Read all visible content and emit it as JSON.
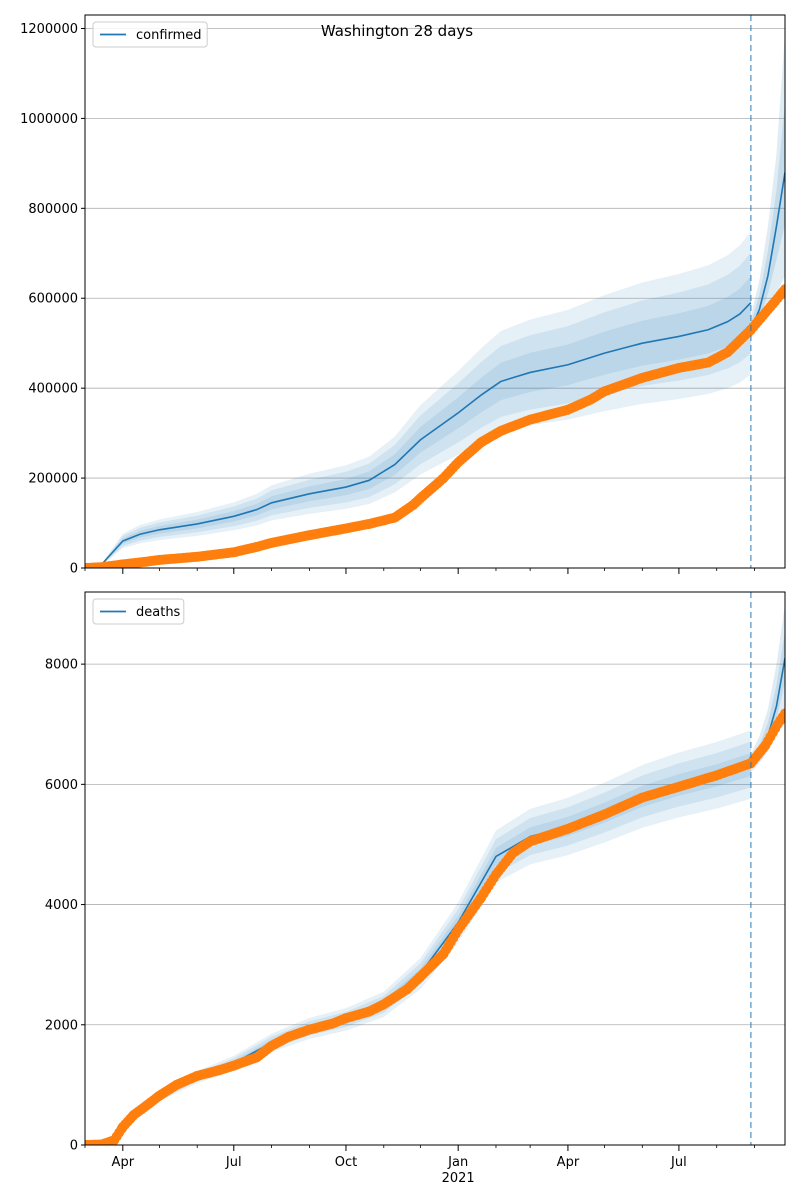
{
  "title": "Washington 28 days",
  "colors": {
    "model": "#1f77b4",
    "observed": "#ff7f0e",
    "grid": "#b0b0b0",
    "band": "#1f77b4"
  },
  "x_axis": {
    "start": "2020-03-01",
    "end": "2021-09-26",
    "major_ticks": [
      {
        "date": "2020-04-01",
        "label": "Apr"
      },
      {
        "date": "2020-07-01",
        "label": "Jul"
      },
      {
        "date": "2020-10-01",
        "label": "Oct"
      },
      {
        "date": "2021-01-01",
        "label": "Jan"
      },
      {
        "date": "2021-04-01",
        "label": "Apr"
      },
      {
        "date": "2021-07-01",
        "label": "Jul"
      }
    ],
    "year_label": {
      "date": "2021-01-01",
      "label": "2021"
    },
    "minor_ticks": [
      "2020-03-01",
      "2020-05-01",
      "2020-06-01",
      "2020-08-01",
      "2020-09-01",
      "2020-11-01",
      "2020-12-01",
      "2021-02-01",
      "2021-03-01",
      "2021-05-01",
      "2021-06-01",
      "2021-08-01",
      "2021-09-01"
    ]
  },
  "forecast_start": "2021-08-29",
  "chart_data": [
    {
      "type": "line",
      "legend": "confirmed",
      "legend_position": "top-left",
      "grid": "y",
      "ylim": [
        0,
        1230000
      ],
      "yticks": [
        {
          "value": 0,
          "label": "0"
        },
        {
          "value": 200000,
          "label": "200000"
        },
        {
          "value": 400000,
          "label": "400000"
        },
        {
          "value": 600000,
          "label": "600000"
        },
        {
          "value": 800000,
          "label": "800000"
        },
        {
          "value": 1000000,
          "label": "1000000"
        },
        {
          "value": 1200000,
          "label": "1200000"
        }
      ],
      "fit": {
        "x": [
          "2020-03-01",
          "2020-03-12",
          "2020-03-22",
          "2020-04-01",
          "2020-04-15",
          "2020-05-01",
          "2020-06-01",
          "2020-07-01",
          "2020-07-20",
          "2020-08-01",
          "2020-09-01",
          "2020-10-01",
          "2020-10-20",
          "2020-11-10",
          "2020-12-01",
          "2021-01-01",
          "2021-01-20",
          "2021-02-05",
          "2021-03-01",
          "2021-04-01",
          "2021-05-01",
          "2021-06-01",
          "2021-07-01",
          "2021-07-25",
          "2021-08-10",
          "2021-08-20",
          "2021-08-29"
        ],
        "y": [
          0,
          0,
          30000,
          60000,
          75000,
          85000,
          98000,
          115000,
          130000,
          145000,
          165000,
          180000,
          195000,
          230000,
          285000,
          345000,
          385000,
          415000,
          435000,
          452000,
          478000,
          500000,
          515000,
          530000,
          548000,
          565000,
          590000
        ],
        "bands": [
          [
            0.9,
            1.1
          ],
          [
            0.81,
            1.19
          ],
          [
            0.73,
            1.27
          ]
        ]
      },
      "forecast": {
        "x": [
          "2021-08-29",
          "2021-09-05",
          "2021-09-12",
          "2021-09-19",
          "2021-09-26"
        ],
        "y": [
          530000,
          575000,
          650000,
          760000,
          880000
        ],
        "upper": [
          560000,
          640000,
          760000,
          920000,
          1190000
        ],
        "lower": [
          510000,
          535000,
          570000,
          610000,
          650000
        ]
      },
      "observed": {
        "x": [
          "2020-03-01",
          "2020-03-15",
          "2020-04-01",
          "2020-04-20",
          "2020-05-01",
          "2020-06-01",
          "2020-07-01",
          "2020-07-20",
          "2020-08-01",
          "2020-09-01",
          "2020-10-01",
          "2020-10-20",
          "2020-11-10",
          "2020-11-25",
          "2020-12-01",
          "2020-12-20",
          "2021-01-01",
          "2021-01-20",
          "2021-02-05",
          "2021-03-01",
          "2021-04-01",
          "2021-04-20",
          "2021-05-01",
          "2021-06-01",
          "2021-07-01",
          "2021-07-25",
          "2021-08-10",
          "2021-08-29",
          "2021-09-10",
          "2021-09-20",
          "2021-09-26"
        ],
        "y": [
          0,
          2000,
          8000,
          14000,
          18000,
          25000,
          35000,
          47000,
          56000,
          73000,
          88000,
          98000,
          112000,
          140000,
          155000,
          200000,
          235000,
          280000,
          305000,
          330000,
          352000,
          375000,
          393000,
          423000,
          445000,
          457000,
          480000,
          530000,
          568000,
          600000,
          620000
        ]
      }
    },
    {
      "type": "line",
      "legend": "deaths",
      "legend_position": "top-left",
      "grid": "y",
      "ylim": [
        0,
        9200
      ],
      "yticks": [
        {
          "value": 0,
          "label": "0"
        },
        {
          "value": 2000,
          "label": "2000"
        },
        {
          "value": 4000,
          "label": "4000"
        },
        {
          "value": 6000,
          "label": "6000"
        },
        {
          "value": 8000,
          "label": "8000"
        }
      ],
      "fit": {
        "x": [
          "2020-03-20",
          "2020-04-01",
          "2020-04-15",
          "2020-05-01",
          "2020-06-01",
          "2020-07-01",
          "2020-08-01",
          "2020-09-01",
          "2020-10-01",
          "2020-11-01",
          "2020-12-01",
          "2021-01-01",
          "2021-02-01",
          "2021-03-01",
          "2021-04-01",
          "2021-05-01",
          "2021-06-01",
          "2021-07-01",
          "2021-08-01",
          "2021-08-29"
        ],
        "y": [
          50,
          250,
          600,
          800,
          1130,
          1360,
          1700,
          1940,
          2090,
          2340,
          2850,
          3700,
          4800,
          5130,
          5300,
          5530,
          5800,
          5990,
          6150,
          6330
        ],
        "bands": [
          [
            0.97,
            1.03
          ],
          [
            0.94,
            1.06
          ],
          [
            0.91,
            1.09
          ]
        ]
      },
      "forecast": {
        "x": [
          "2021-08-29",
          "2021-09-05",
          "2021-09-12",
          "2021-09-19",
          "2021-09-26"
        ],
        "y": [
          6330,
          6500,
          6800,
          7300,
          8100
        ],
        "upper": [
          6500,
          6800,
          7250,
          8000,
          9000
        ],
        "lower": [
          6200,
          6350,
          6550,
          6850,
          7300
        ]
      },
      "observed": {
        "x": [
          "2020-03-01",
          "2020-03-15",
          "2020-03-25",
          "2020-04-01",
          "2020-04-10",
          "2020-04-20",
          "2020-05-01",
          "2020-05-15",
          "2020-06-01",
          "2020-06-20",
          "2020-07-01",
          "2020-07-20",
          "2020-08-01",
          "2020-08-15",
          "2020-09-01",
          "2020-09-20",
          "2020-10-01",
          "2020-10-20",
          "2020-11-01",
          "2020-11-20",
          "2020-12-01",
          "2020-12-20",
          "2021-01-01",
          "2021-01-20",
          "2021-02-01",
          "2021-02-15",
          "2021-03-01",
          "2021-04-01",
          "2021-05-01",
          "2021-06-01",
          "2021-07-01",
          "2021-08-01",
          "2021-08-29",
          "2021-09-10",
          "2021-09-20",
          "2021-09-26"
        ],
        "y": [
          0,
          10,
          80,
          300,
          500,
          650,
          820,
          1000,
          1150,
          1250,
          1320,
          1460,
          1650,
          1800,
          1920,
          2020,
          2110,
          2220,
          2340,
          2590,
          2800,
          3180,
          3580,
          4120,
          4500,
          4860,
          5050,
          5260,
          5500,
          5780,
          5960,
          6150,
          6350,
          6650,
          7000,
          7180
        ]
      }
    }
  ]
}
